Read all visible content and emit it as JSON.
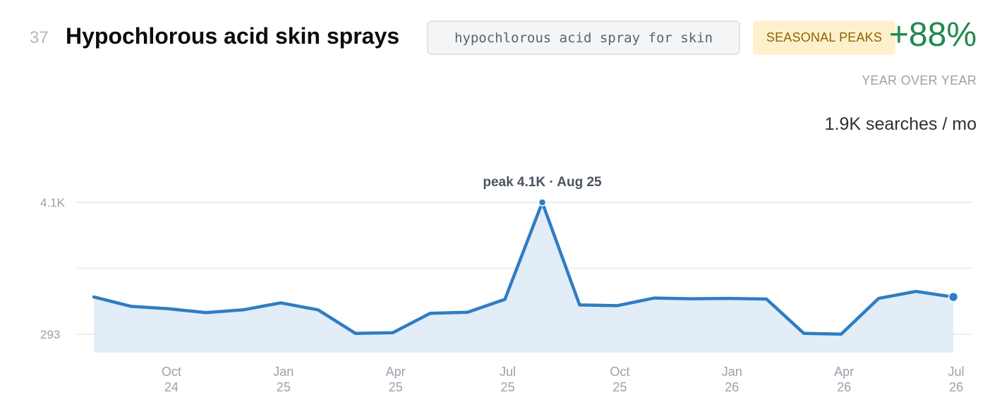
{
  "header": {
    "rank": "37",
    "title": "Hypochlorous acid skin sprays",
    "query": "hypochlorous acid spray for skin",
    "badge": "SEASONAL PEAKS",
    "growth": "+88%",
    "growth_label": "YEAR OVER YEAR",
    "volume": "1.9K searches / mo"
  },
  "colors": {
    "line": "#2f7dc3",
    "area": "#e2edf7",
    "growth": "#208a4c",
    "badge_bg": "#fdf1cd",
    "badge_text": "#8f6205"
  },
  "chart_data": {
    "type": "area",
    "x": [
      "2024-08",
      "2024-09",
      "2024-10",
      "2024-11",
      "2024-12",
      "2025-01",
      "2025-02",
      "2025-03",
      "2025-04",
      "2025-05",
      "2025-06",
      "2025-07",
      "2025-08",
      "2025-09",
      "2025-10",
      "2025-11",
      "2025-12",
      "2026-01",
      "2026-02",
      "2026-03",
      "2026-04",
      "2026-05",
      "2026-06",
      "2026-07"
    ],
    "series": [
      {
        "values": [
          1370,
          1100,
          1030,
          920,
          1000,
          1200,
          1000,
          320,
          340,
          900,
          930,
          1300,
          4100,
          1140,
          1120,
          1340,
          1320,
          1330,
          1310,
          320,
          300,
          1330,
          1530,
          1370
        ]
      }
    ],
    "ylim": [
      293,
      4100
    ],
    "y_ticks": [
      "4.1K",
      "293"
    ],
    "x_ticks": [
      {
        "month": "Oct",
        "year": "24",
        "index": 2
      },
      {
        "month": "Jan",
        "year": "25",
        "index": 5
      },
      {
        "month": "Apr",
        "year": "25",
        "index": 8
      },
      {
        "month": "Jul",
        "year": "25",
        "index": 11
      },
      {
        "month": "Oct",
        "year": "25",
        "index": 14
      },
      {
        "month": "Jan",
        "year": "26",
        "index": 17
      },
      {
        "month": "Apr",
        "year": "26",
        "index": 20
      },
      {
        "month": "Jul",
        "year": "26",
        "index": 23
      }
    ],
    "peak_label": "peak 4.1K · Aug 25",
    "peak_index": 12,
    "grid": true
  }
}
